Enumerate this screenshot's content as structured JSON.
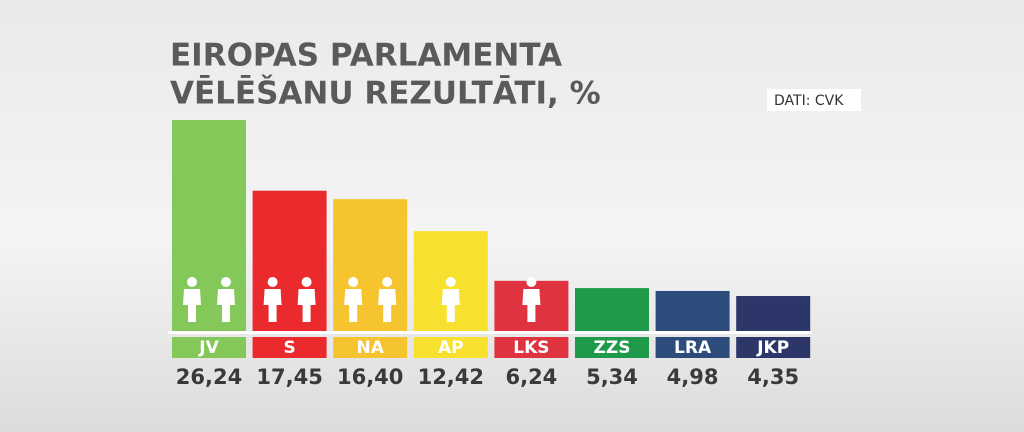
{
  "chart_data": {
    "type": "bar",
    "title": [
      "EIROPAS PARLAMENTA",
      "VĒLĒŠANU REZULTĀTI, %"
    ],
    "source": "DATI: CVK",
    "categories": [
      "JV",
      "S",
      "NA",
      "AP",
      "LKS",
      "ZZS",
      "LRA",
      "JKP"
    ],
    "values": [
      26.24,
      17.45,
      16.4,
      12.42,
      6.24,
      5.34,
      4.98,
      4.35
    ],
    "value_labels": [
      "26,24",
      "17,45",
      "16,40",
      "12,42",
      "6,24",
      "5,34",
      "4,98",
      "4,35"
    ],
    "colors": [
      "#84c85a",
      "#ea2a2c",
      "#f6c42e",
      "#f7e12e",
      "#df3340",
      "#1f9a4a",
      "#2d4b7b",
      "#2c3668"
    ],
    "seats": [
      2,
      2,
      2,
      1,
      1,
      0,
      0,
      0
    ]
  }
}
